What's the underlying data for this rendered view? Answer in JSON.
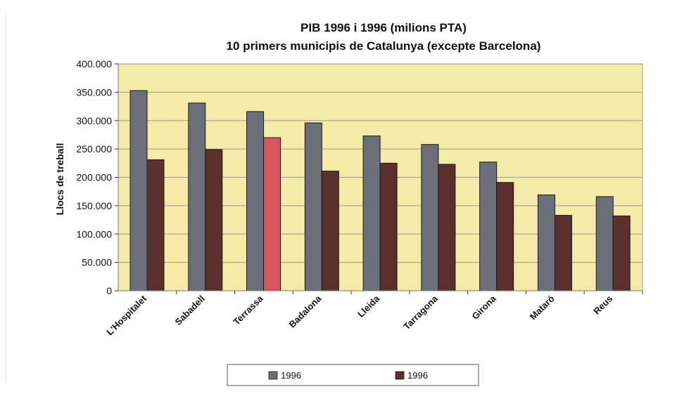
{
  "chart_data": {
    "type": "bar",
    "title": "PIB 1996 i 1996 (milions PTA)",
    "subtitle": "10 primers municipis de Catalunya (excepte Barcelona)",
    "xlabel": "",
    "ylabel": "Llocs de treball",
    "ylim": [
      0,
      400000
    ],
    "yticks": [
      0,
      50000,
      100000,
      150000,
      200000,
      250000,
      300000,
      350000,
      400000
    ],
    "ytick_labels": [
      "0",
      "50.000",
      "100.000",
      "150.000",
      "200.000",
      "250.000",
      "300.000",
      "350.000",
      "400.000"
    ],
    "grid": true,
    "legend_position": "bottom",
    "categories": [
      "L'Hospitalet",
      "Sabadell",
      "Terrassa",
      "Badalona",
      "Lleida",
      "Tarragona",
      "Girona",
      "Mataró",
      "Reus"
    ],
    "series": [
      {
        "name": "1996",
        "color": "#6b6f7a",
        "values": [
          353000,
          331000,
          316000,
          296000,
          273000,
          258000,
          227000,
          169000,
          166000
        ]
      },
      {
        "name": "1996",
        "color": "#5a2f2c",
        "highlight_color": "#d9545c",
        "highlight_index": 2,
        "values": [
          231000,
          249000,
          270000,
          211000,
          225000,
          223000,
          191000,
          133000,
          132000
        ]
      }
    ],
    "plot_background": "#f5eba8",
    "grid_color": "#9a9a9a"
  }
}
